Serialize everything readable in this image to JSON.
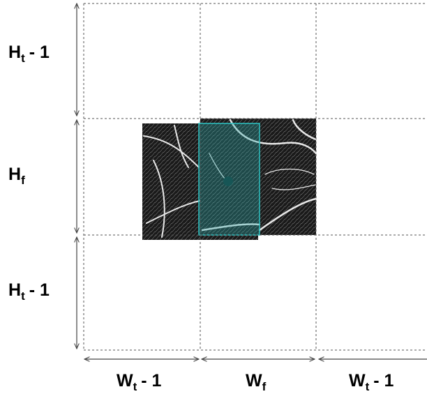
{
  "labels": [
    {
      "letter": "H",
      "subscript": "t",
      "suffix": "- 1"
    },
    {
      "letter": "H",
      "subscript": "f"
    },
    {
      "letter": "H",
      "subscript": "t",
      "suffix": "- 1"
    },
    {
      "letter": "W",
      "subscript": "t",
      "suffix": "- 1"
    },
    {
      "letter": "W",
      "subscript": "f"
    },
    {
      "letter": "W",
      "subscript": "t",
      "suffix": "- 1"
    }
  ]
}
